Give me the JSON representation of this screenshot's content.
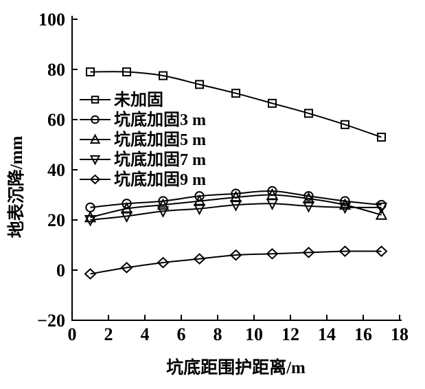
{
  "figure": {
    "background_color": "#ffffff",
    "ink_color": "#000000"
  },
  "chart_data": {
    "type": "line",
    "title": "",
    "xlabel": "坑底距围护距离/m",
    "ylabel": "地表沉降/mm",
    "xlim": [
      0,
      18
    ],
    "ylim": [
      -20,
      100
    ],
    "x_ticks": [
      0,
      2,
      4,
      6,
      8,
      10,
      12,
      14,
      16,
      18
    ],
    "y_ticks": [
      -20,
      0,
      20,
      40,
      60,
      80,
      100
    ],
    "grid": false,
    "legend_position": "upper-left-inside",
    "x": [
      1,
      3,
      5,
      7,
      9,
      11,
      13,
      15,
      17
    ],
    "series": [
      {
        "name": "未加固",
        "marker": "square",
        "values": [
          79,
          79,
          77.5,
          74,
          70.5,
          66.5,
          62.5,
          58,
          53
        ]
      },
      {
        "name": "坑底加固3 m",
        "marker": "circle",
        "values": [
          25,
          26.5,
          27.5,
          29.5,
          30.5,
          31.5,
          29.5,
          27.5,
          26
        ]
      },
      {
        "name": "坑底加固5 m",
        "marker": "triangle-up",
        "values": [
          21,
          24.5,
          26,
          27.5,
          29,
          30,
          28.5,
          26,
          22
        ]
      },
      {
        "name": "坑底加固7 m",
        "marker": "triangle-down",
        "values": [
          20,
          21.5,
          23.5,
          24.5,
          26,
          26.5,
          25.5,
          25,
          25
        ]
      },
      {
        "name": "坑底加固9 m",
        "marker": "diamond",
        "values": [
          -1.5,
          1,
          3,
          4.5,
          6,
          6.5,
          7,
          7.5,
          7.5
        ]
      }
    ]
  }
}
